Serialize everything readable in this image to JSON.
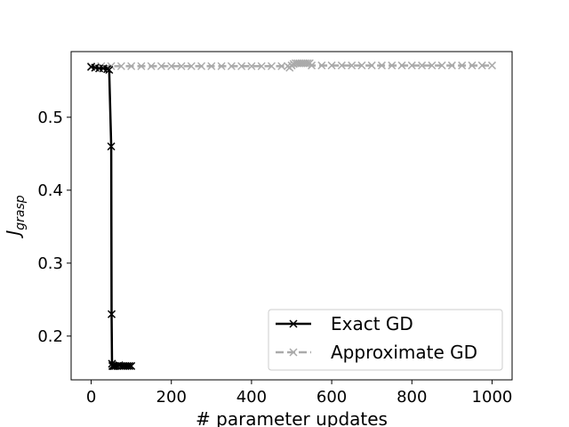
{
  "chart_data": {
    "type": "line",
    "xlabel": "# parameter updates",
    "ylabel": "J",
    "ylabel_subscript": "grasp",
    "xlim": [
      -50,
      1050
    ],
    "ylim": [
      0.14,
      0.59
    ],
    "xticks": [
      0,
      200,
      400,
      600,
      800,
      1000
    ],
    "xtick_labels": [
      "0",
      "200",
      "400",
      "600",
      "800",
      "1000"
    ],
    "yticks": [
      0.2,
      0.3,
      0.4,
      0.5
    ],
    "ytick_labels": [
      "0.2",
      "0.3",
      "0.4",
      "0.5"
    ],
    "grid": false,
    "legend_position": "lower-right",
    "series": [
      {
        "name": "Exact GD",
        "color": "#000000",
        "linestyle": "solid",
        "marker": "x",
        "x": [
          0,
          10,
          20,
          30,
          40,
          45,
          50,
          51,
          52,
          53,
          55,
          57,
          60,
          65,
          70,
          75,
          80,
          85,
          90,
          95,
          100
        ],
        "y": [
          0.569,
          0.568,
          0.567,
          0.567,
          0.566,
          0.565,
          0.46,
          0.23,
          0.162,
          0.159,
          0.159,
          0.159,
          0.159,
          0.159,
          0.16,
          0.159,
          0.159,
          0.159,
          0.159,
          0.159,
          0.159
        ]
      },
      {
        "name": "Approximate GD",
        "color": "#aaaaaa",
        "linestyle": "dashed",
        "marker": "x",
        "x": [
          0,
          25,
          50,
          75,
          100,
          125,
          150,
          175,
          200,
          225,
          250,
          275,
          300,
          325,
          350,
          375,
          400,
          425,
          450,
          475,
          490,
          495,
          500,
          505,
          510,
          515,
          520,
          525,
          530,
          535,
          540,
          545,
          550,
          575,
          600,
          625,
          650,
          675,
          700,
          725,
          750,
          775,
          800,
          825,
          850,
          875,
          900,
          925,
          950,
          975,
          1000
        ],
        "y": [
          0.57,
          0.57,
          0.57,
          0.57,
          0.57,
          0.57,
          0.57,
          0.57,
          0.57,
          0.57,
          0.57,
          0.57,
          0.57,
          0.57,
          0.57,
          0.57,
          0.57,
          0.57,
          0.57,
          0.57,
          0.57,
          0.568,
          0.571,
          0.573,
          0.574,
          0.574,
          0.574,
          0.574,
          0.574,
          0.574,
          0.574,
          0.574,
          0.571,
          0.571,
          0.571,
          0.571,
          0.571,
          0.571,
          0.571,
          0.571,
          0.571,
          0.571,
          0.571,
          0.571,
          0.571,
          0.571,
          0.571,
          0.571,
          0.571,
          0.571,
          0.571
        ]
      }
    ]
  }
}
